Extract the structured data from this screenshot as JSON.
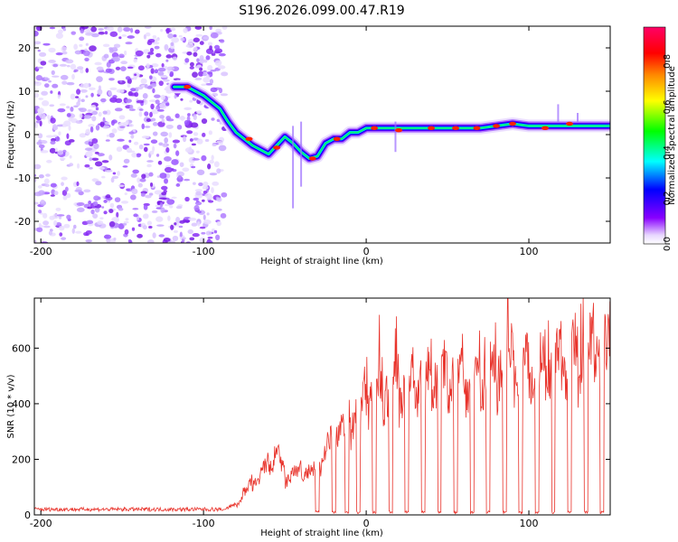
{
  "title": "S196.2026.099.00.47.R19",
  "chart_data": [
    {
      "type": "heatmap",
      "name": "spectrogram",
      "xlabel": "Height of straight line (km)",
      "ylabel": "Frequency (Hz)",
      "xlim": [
        -204,
        150
      ],
      "ylim": [
        -25,
        25
      ],
      "xticks": [
        -200,
        -100,
        0,
        100
      ],
      "yticks": [
        -20,
        -10,
        0,
        10,
        20
      ],
      "colorbar": {
        "label": "Normalized spectral amplitude",
        "range": [
          0.0,
          0.95
        ],
        "ticks": [
          0.0,
          0.2,
          0.4,
          0.6,
          0.8
        ],
        "tick_labels": [
          "0.0",
          "0.2",
          "0.4",
          "0.6",
          "0.8"
        ],
        "colormap": [
          "#ffffff",
          "#8800ff",
          "#0000ff",
          "#00ffff",
          "#00ff00",
          "#ffff00",
          "#ff8800",
          "#ff0000",
          "#ff0066"
        ]
      },
      "noise_region_x": [
        -204,
        -87
      ],
      "signal_trace": {
        "x": [
          -118,
          -110,
          -100,
          -90,
          -85,
          -80,
          -75,
          -70,
          -65,
          -60,
          -55,
          -50,
          -45,
          -40,
          -35,
          -30,
          -25,
          -20,
          -15,
          -10,
          -5,
          0,
          10,
          20,
          30,
          40,
          50,
          60,
          70,
          80,
          90,
          100,
          110,
          120,
          130,
          140,
          150
        ],
        "y": [
          11,
          11,
          9,
          6,
          3,
          0.5,
          -1,
          -2.5,
          -3.5,
          -4.5,
          -2.5,
          -0.5,
          -2,
          -4,
          -5.5,
          -5,
          -2,
          -1,
          -1,
          0.5,
          0.5,
          1.5,
          1.5,
          1.5,
          1.5,
          1.5,
          1.5,
          1.5,
          1.5,
          2,
          2.5,
          2,
          2,
          2,
          2,
          2,
          2
        ]
      },
      "peak_points": [
        {
          "x": -110,
          "y": 11
        },
        {
          "x": -72,
          "y": -1
        },
        {
          "x": -55,
          "y": -3
        },
        {
          "x": -33,
          "y": -5.5
        },
        {
          "x": -18,
          "y": -1
        },
        {
          "x": 5,
          "y": 1.5
        },
        {
          "x": 20,
          "y": 1
        },
        {
          "x": 40,
          "y": 1.5
        },
        {
          "x": 55,
          "y": 1.5
        },
        {
          "x": 68,
          "y": 1.5
        },
        {
          "x": 80,
          "y": 2
        },
        {
          "x": 90,
          "y": 2.5
        },
        {
          "x": 110,
          "y": 1.5
        },
        {
          "x": 125,
          "y": 2.5
        }
      ]
    },
    {
      "type": "line",
      "name": "snr",
      "xlabel": "Height of straight line (km)",
      "ylabel": "SNR (10 * v/v)",
      "xlim": [
        -204,
        150
      ],
      "ylim": [
        0,
        780
      ],
      "xticks": [
        -200,
        -100,
        0,
        100
      ],
      "yticks": [
        0,
        200,
        400,
        600
      ],
      "color": "#e8322a",
      "envelope": {
        "x": [
          -204,
          -90,
          -80,
          -70,
          -60,
          -55,
          -50,
          -40,
          -30,
          -25,
          -20,
          -10,
          -5,
          0,
          10,
          20,
          30,
          40,
          50,
          60,
          70,
          80,
          90,
          100,
          110,
          120,
          130,
          140,
          150
        ],
        "y": [
          20,
          20,
          40,
          130,
          200,
          260,
          150,
          180,
          170,
          280,
          330,
          380,
          430,
          480,
          500,
          520,
          540,
          560,
          580,
          570,
          560,
          600,
          640,
          590,
          620,
          610,
          660,
          680,
          660
        ]
      },
      "dropouts": [
        -30,
        -20,
        -12,
        -5,
        5,
        15,
        25,
        35,
        45,
        55,
        65,
        75,
        85,
        95,
        105,
        115,
        125,
        135,
        145
      ],
      "peak_points": [
        {
          "x": 8,
          "y": 720
        },
        {
          "x": 87,
          "y": 780
        },
        {
          "x": 112,
          "y": 700
        },
        {
          "x": 132,
          "y": 760
        }
      ]
    }
  ]
}
